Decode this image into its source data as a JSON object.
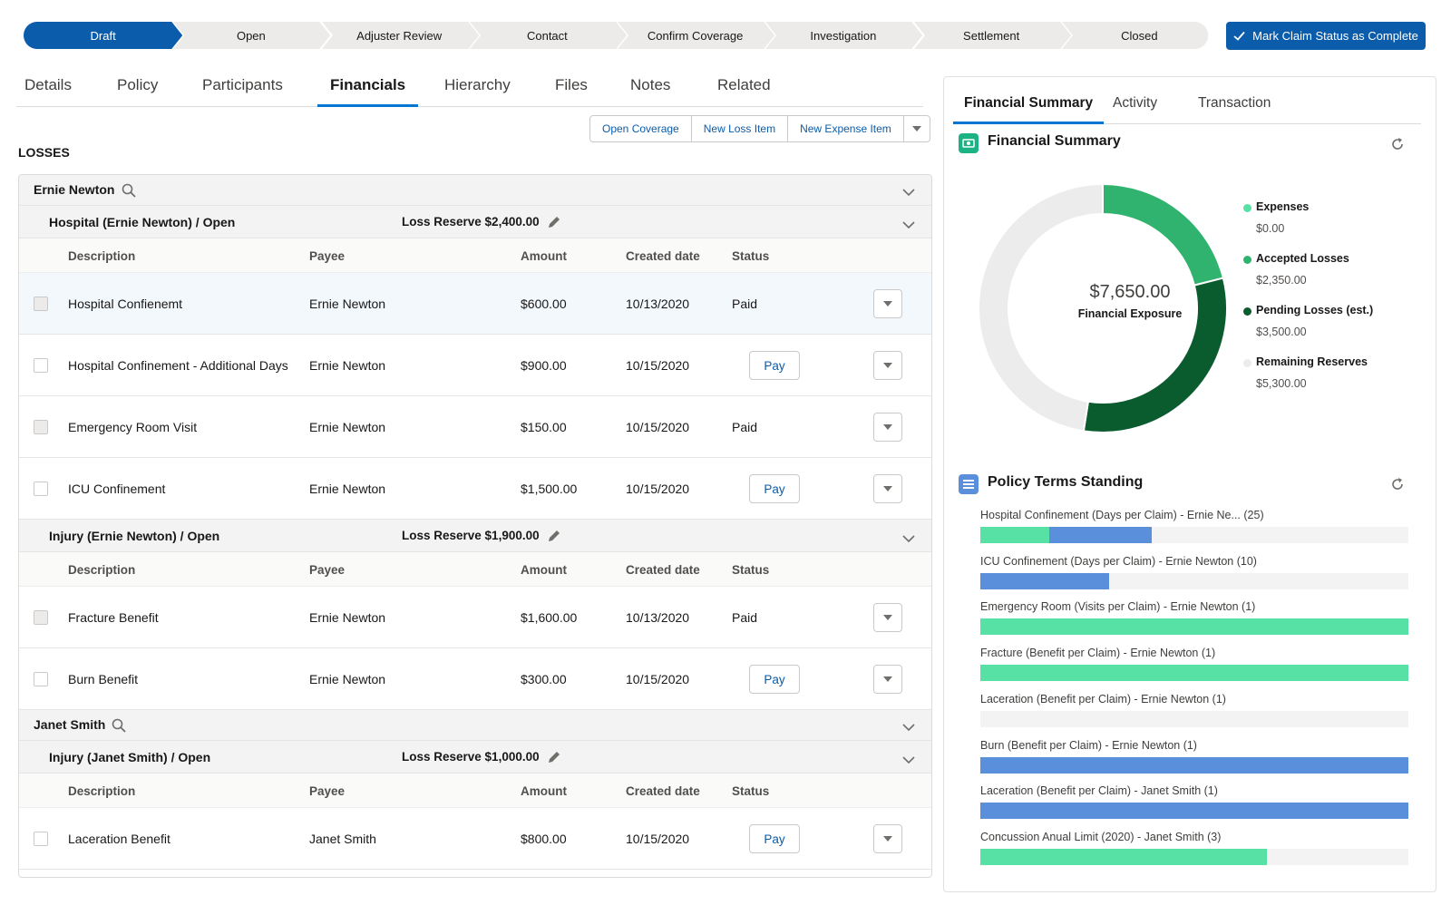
{
  "path": {
    "steps": [
      "Draft",
      "Open",
      "Adjuster Review",
      "Contact",
      "Confirm Coverage",
      "Investigation",
      "Settlement",
      "Closed"
    ],
    "active_index": 0,
    "complete_button": "Mark Claim Status as Complete"
  },
  "tabs": [
    "Details",
    "Policy",
    "Participants",
    "Financials",
    "Hierarchy",
    "Files",
    "Notes",
    "Related"
  ],
  "active_tab": "Financials",
  "actions": [
    "Open Coverage",
    "New Loss Item",
    "New Expense Item"
  ],
  "losses_label": "LOSSES",
  "columns": {
    "description": "Description",
    "payee": "Payee",
    "amount": "Amount",
    "created": "Created date",
    "status": "Status"
  },
  "people": [
    {
      "name": "Ernie Newton",
      "groups": [
        {
          "title": "Hospital (Ernie Newton) / Open",
          "reserve": "Loss Reserve $2,400.00",
          "items": [
            {
              "description": "Hospital Confienemt",
              "payee": "Ernie Newton",
              "amount": "$600.00",
              "created": "10/13/2020",
              "status": "Paid"
            },
            {
              "description": "Hospital Confinement - Additional Days",
              "payee": "Ernie Newton",
              "amount": "$900.00",
              "created": "10/15/2020",
              "status": "Pay"
            },
            {
              "description": "Emergency Room Visit",
              "payee": "Ernie Newton",
              "amount": "$150.00",
              "created": "10/15/2020",
              "status": "Paid"
            },
            {
              "description": "ICU Confinement",
              "payee": "Ernie Newton",
              "amount": "$1,500.00",
              "created": "10/15/2020",
              "status": "Pay"
            }
          ]
        },
        {
          "title": "Injury (Ernie Newton) / Open",
          "reserve": "Loss Reserve $1,900.00",
          "items": [
            {
              "description": "Fracture Benefit",
              "payee": "Ernie Newton",
              "amount": "$1,600.00",
              "created": "10/13/2020",
              "status": "Paid"
            },
            {
              "description": "Burn Benefit",
              "payee": "Ernie Newton",
              "amount": "$300.00",
              "created": "10/15/2020",
              "status": "Pay"
            }
          ]
        }
      ]
    },
    {
      "name": "Janet Smith",
      "groups": [
        {
          "title": "Injury (Janet Smith) / Open",
          "reserve": "Loss Reserve $1,000.00",
          "items": [
            {
              "description": "Laceration Benefit",
              "payee": "Janet Smith",
              "amount": "$800.00",
              "created": "10/15/2020",
              "status": "Pay"
            }
          ]
        }
      ]
    }
  ],
  "side_tabs": [
    "Financial Summary",
    "Activity",
    "Transaction"
  ],
  "financial_summary": {
    "title": "Financial Summary",
    "center_value": "$7,650.00",
    "center_label": "Financial Exposure",
    "legend": [
      {
        "name": "Expenses",
        "value": "$0.00",
        "color": "#57e1a4"
      },
      {
        "name": "Accepted Losses",
        "value": "$2,350.00",
        "color": "#2fb36e"
      },
      {
        "name": "Pending Losses (est.)",
        "value": "$3,500.00",
        "color": "#0a5c2f"
      },
      {
        "name": "Remaining Reserves",
        "value": "$5,300.00",
        "color": "#ececec"
      }
    ]
  },
  "policy_terms": {
    "title": "Policy Terms Standing",
    "items": [
      {
        "label": "Hospital Confinement (Days per Claim) - Ernie Ne... (25)",
        "green": 0.16,
        "blue": 0.24
      },
      {
        "label": "ICU Confinement (Days per Claim) - Ernie Newton (10)",
        "green": 0,
        "blue": 0.3
      },
      {
        "label": "Emergency Room (Visits per Claim) - Ernie Newton (1)",
        "green": 1.0,
        "blue": 0
      },
      {
        "label": "Fracture (Benefit per Claim) - Ernie Newton (1)",
        "green": 1.0,
        "blue": 0
      },
      {
        "label": "Laceration (Benefit per Claim) - Ernie Newton (1)",
        "green": 0,
        "blue": 0
      },
      {
        "label": "Burn (Benefit per Claim) - Ernie Newton (1)",
        "green": 0,
        "blue": 1.0
      },
      {
        "label": "Laceration (Benefit per Claim) - Janet Smith (1)",
        "green": 0,
        "blue": 1.0
      },
      {
        "label": "Concussion Anual Limit (2020) - Janet Smith (3)",
        "green": 0.67,
        "blue": 0
      }
    ]
  }
}
